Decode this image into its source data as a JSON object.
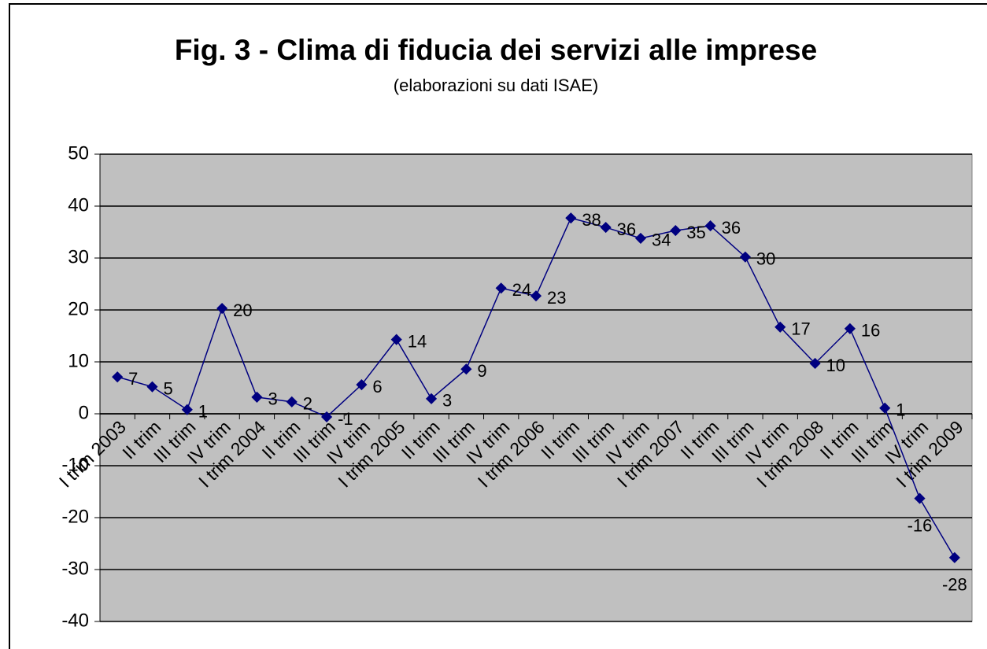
{
  "chart_data": {
    "type": "line",
    "title": "Fig. 3 - Clima di fiducia dei servizi alle imprese",
    "subtitle": "(elaborazioni su dati ISAE)",
    "categories": [
      "I trim 2003",
      "II trim",
      "III trim",
      "IV trim",
      "I trim 2004",
      "II trim",
      "III trim",
      "IV trim",
      "I trim 2005",
      "II trim",
      "III trim",
      "IV trim",
      "I trim 2006",
      "II trim",
      "III trim",
      "IV trim",
      "I trim 2007",
      "II trim",
      "III trim",
      "IV trim",
      "I trim 2008",
      "II trim",
      "III trim",
      "IV trim",
      "I trim 2009"
    ],
    "series": [
      {
        "name": "Clima di fiducia",
        "color": "#000080",
        "values": [
          7.1,
          5.2,
          0.8,
          20.3,
          3.2,
          2.3,
          -0.6,
          5.6,
          14.3,
          2.9,
          8.6,
          24.2,
          22.7,
          37.7,
          35.9,
          33.8,
          35.3,
          36.2,
          30.2,
          16.7,
          9.7,
          16.4,
          1.1,
          -16.3,
          -27.7
        ],
        "value_labels": [
          "7",
          "5",
          "1",
          "20",
          "3",
          "2",
          "-1",
          "6",
          "14",
          "3",
          "9",
          "24",
          "23",
          "38",
          "36",
          "34",
          "35",
          "36",
          "30",
          "17",
          "10",
          "16",
          "1",
          "-16",
          "-28"
        ]
      }
    ],
    "ylim": [
      -40,
      50
    ],
    "yticks": [
      -40,
      -30,
      -20,
      -10,
      0,
      10,
      20,
      30,
      40,
      50
    ],
    "grid": true,
    "plot_background": "#c0c0c0"
  }
}
